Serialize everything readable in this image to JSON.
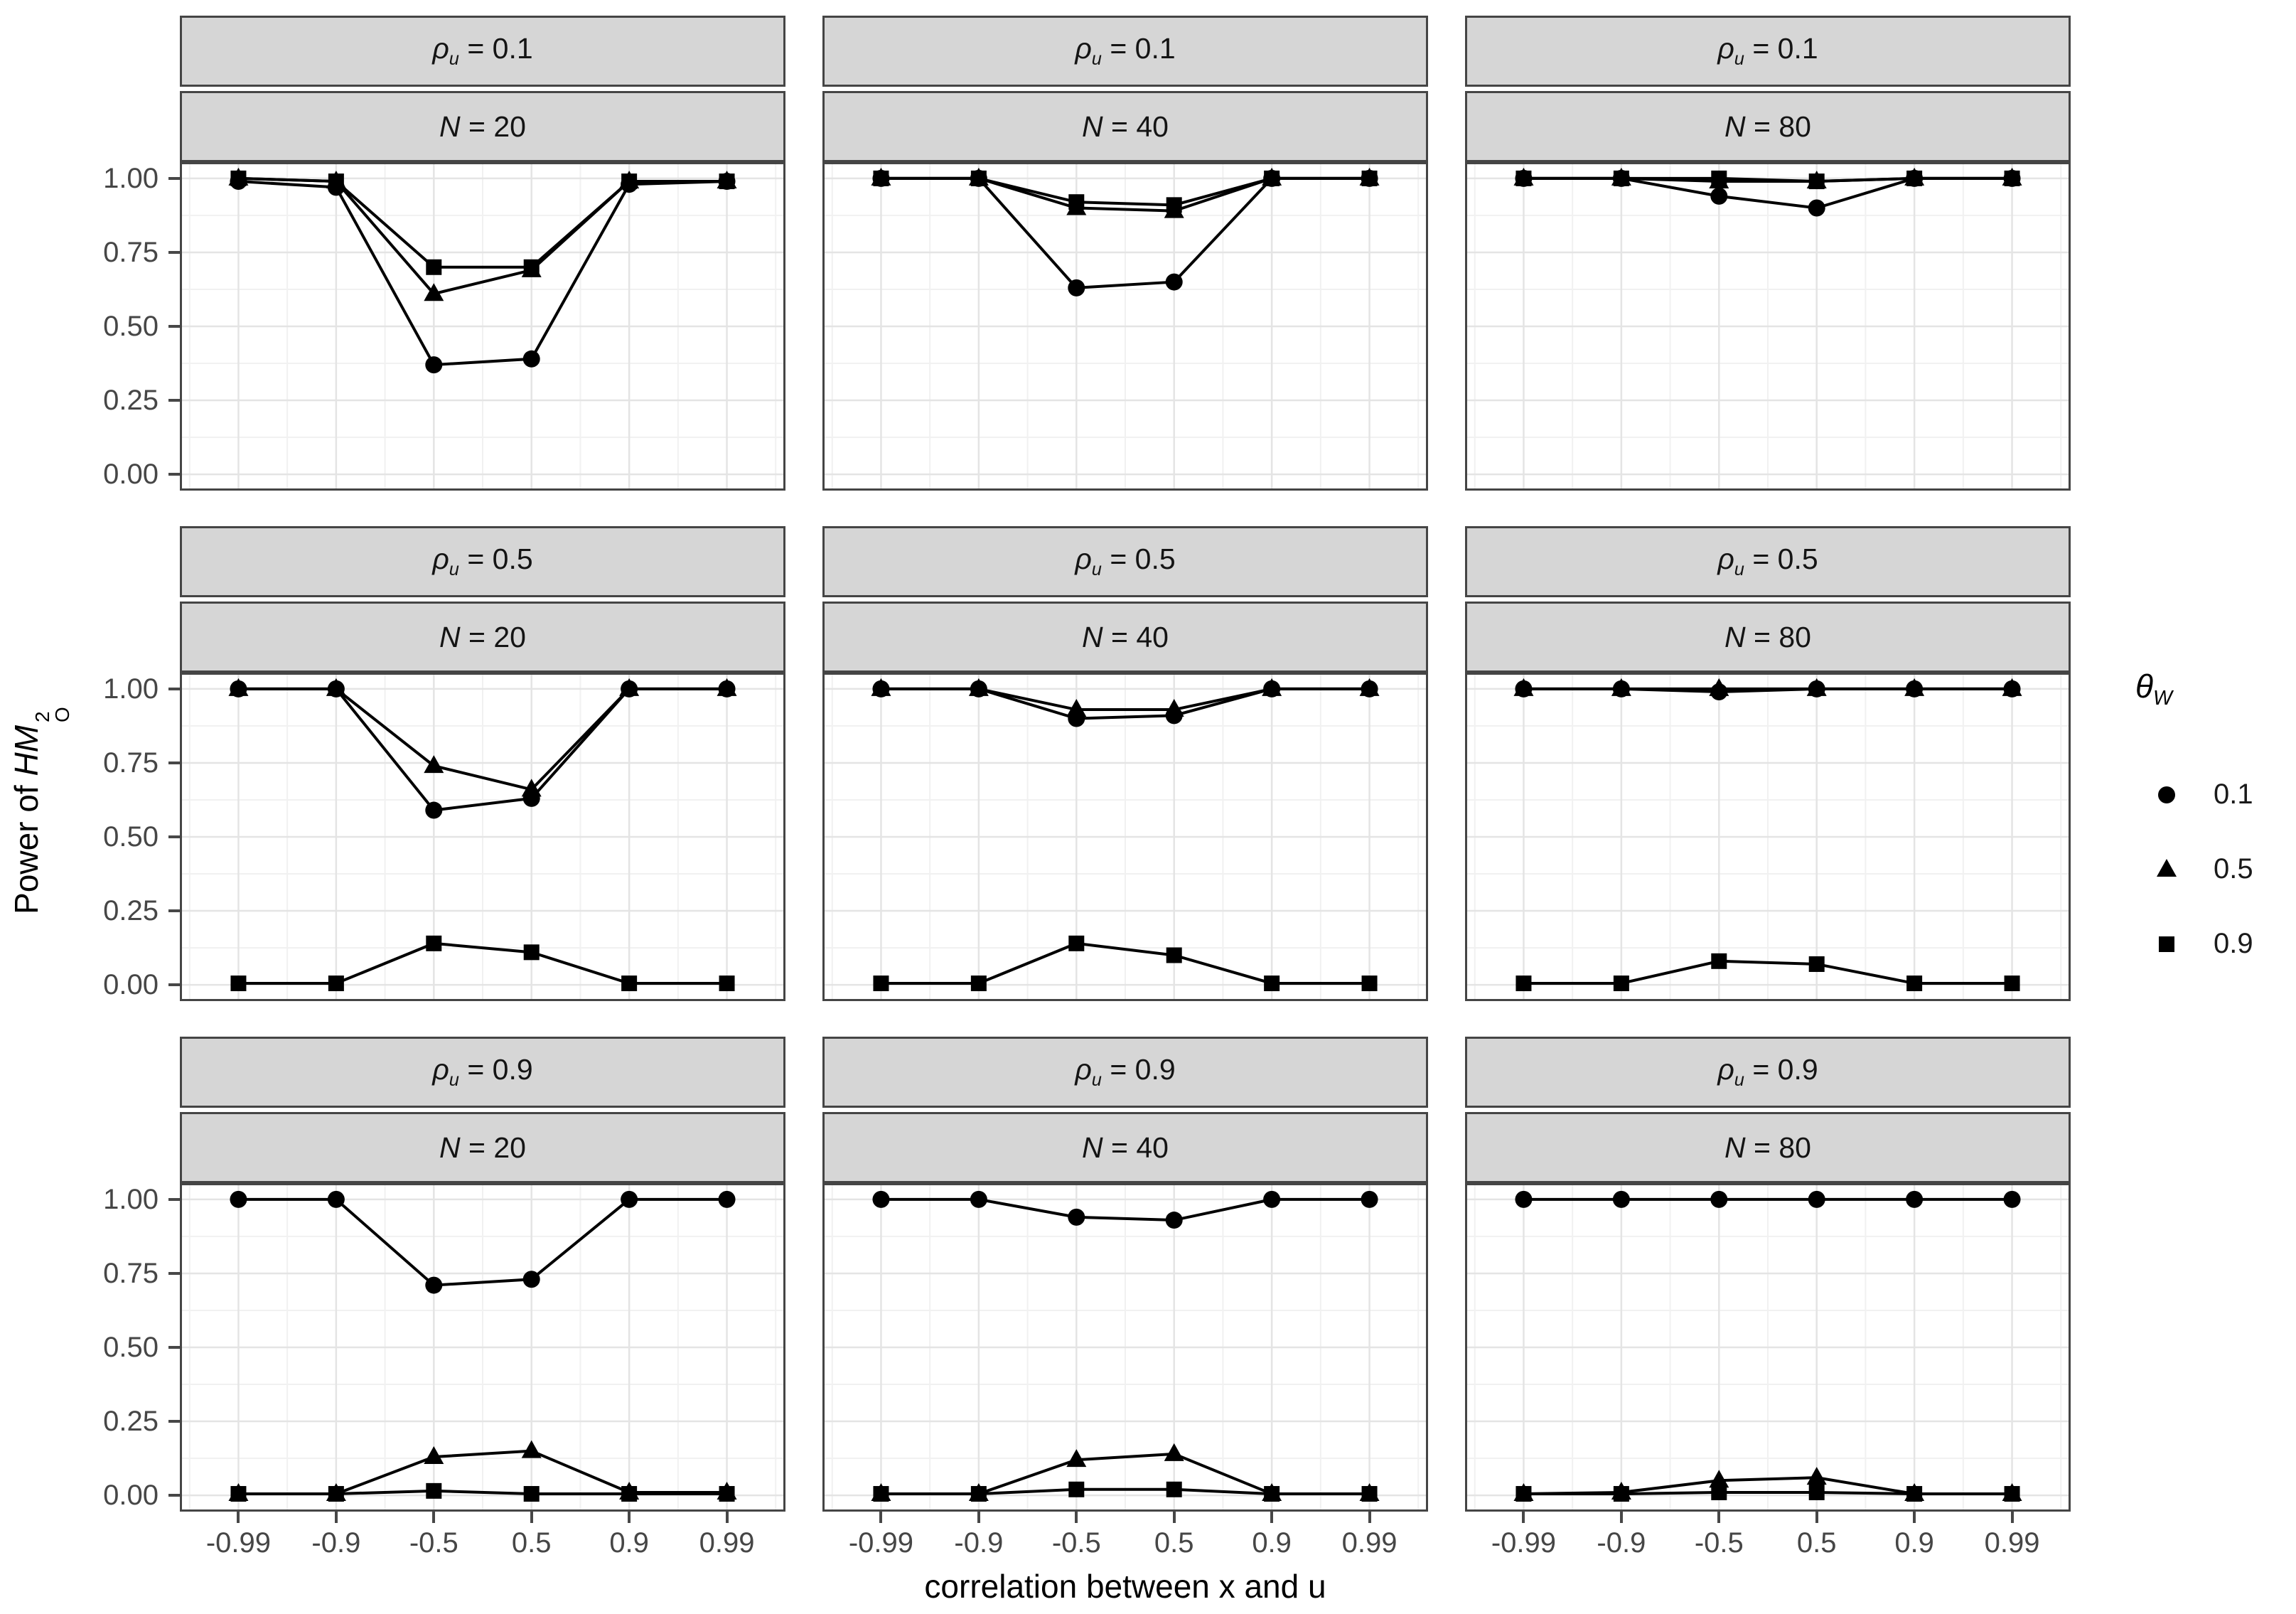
{
  "axes": {
    "x_title": "correlation between x and u",
    "y_title_prefix": "Power of ",
    "y_title_math": "HM",
    "y_title_sup": "2",
    "y_title_sub": "O",
    "x_tick_labels": [
      "-0.99",
      "-0.9",
      "-0.5",
      "0.5",
      "0.9",
      "0.99"
    ],
    "y_tick_labels": [
      "1.00",
      "0.75",
      "0.50",
      "0.25",
      "0.00"
    ],
    "y_tick_values": [
      1.0,
      0.75,
      0.5,
      0.25,
      0.0
    ]
  },
  "facets": {
    "row_symbol": "ρ",
    "row_sub": "u",
    "col_symbol": "N",
    "equals": " = "
  },
  "legend": {
    "title_symbol": "θ",
    "title_sub": "W",
    "entries": [
      {
        "marker": "circle",
        "label": "0.1"
      },
      {
        "marker": "triangle",
        "label": "0.5"
      },
      {
        "marker": "square",
        "label": "0.9"
      }
    ]
  },
  "colors": {
    "series": "#000000",
    "strip_fill": "#d6d6d6",
    "panel_border": "#454545",
    "grid_major": "#e4e4e4",
    "grid_minor": "#f1f1f1",
    "tick_text": "#464646"
  },
  "chart_data": {
    "type": "line",
    "x_type": "discrete",
    "x": [
      -0.99,
      -0.9,
      -0.5,
      0.5,
      0.9,
      0.99
    ],
    "xlabel": "correlation between x and u",
    "ylabel": "Power of HM_O^2",
    "ylim": [
      0,
      1
    ],
    "y_ticks": [
      0,
      0.25,
      0.5,
      0.75,
      1.0
    ],
    "grid": true,
    "legend_title": "theta_W",
    "legend_position": "right",
    "facet_rows_variable": "rho_u",
    "facet_cols_variable": "N",
    "panels": [
      {
        "rho": "0.1",
        "N": "20",
        "series": [
          {
            "theta": "0.1",
            "marker": "circle",
            "values": [
              0.99,
              0.97,
              0.37,
              0.39,
              0.98,
              0.99
            ]
          },
          {
            "theta": "0.5",
            "marker": "triangle",
            "values": [
              1.0,
              0.99,
              0.61,
              0.69,
              0.99,
              0.99
            ]
          },
          {
            "theta": "0.9",
            "marker": "square",
            "values": [
              1.0,
              0.99,
              0.7,
              0.7,
              0.99,
              0.99
            ]
          }
        ]
      },
      {
        "rho": "0.1",
        "N": "40",
        "series": [
          {
            "theta": "0.1",
            "marker": "circle",
            "values": [
              1.0,
              1.0,
              0.63,
              0.65,
              1.0,
              1.0
            ]
          },
          {
            "theta": "0.5",
            "marker": "triangle",
            "values": [
              1.0,
              1.0,
              0.9,
              0.89,
              1.0,
              1.0
            ]
          },
          {
            "theta": "0.9",
            "marker": "square",
            "values": [
              1.0,
              1.0,
              0.92,
              0.91,
              1.0,
              1.0
            ]
          }
        ]
      },
      {
        "rho": "0.1",
        "N": "80",
        "series": [
          {
            "theta": "0.1",
            "marker": "circle",
            "values": [
              1.0,
              1.0,
              0.94,
              0.9,
              1.0,
              1.0
            ]
          },
          {
            "theta": "0.5",
            "marker": "triangle",
            "values": [
              1.0,
              1.0,
              0.99,
              0.99,
              1.0,
              1.0
            ]
          },
          {
            "theta": "0.9",
            "marker": "square",
            "values": [
              1.0,
              1.0,
              1.0,
              0.99,
              1.0,
              1.0
            ]
          }
        ]
      },
      {
        "rho": "0.5",
        "N": "20",
        "series": [
          {
            "theta": "0.1",
            "marker": "circle",
            "values": [
              1.0,
              1.0,
              0.59,
              0.63,
              1.0,
              1.0
            ]
          },
          {
            "theta": "0.5",
            "marker": "triangle",
            "values": [
              1.0,
              1.0,
              0.74,
              0.66,
              1.0,
              1.0
            ]
          },
          {
            "theta": "0.9",
            "marker": "square",
            "values": [
              0.005,
              0.005,
              0.14,
              0.11,
              0.005,
              0.005
            ]
          }
        ]
      },
      {
        "rho": "0.5",
        "N": "40",
        "series": [
          {
            "theta": "0.1",
            "marker": "circle",
            "values": [
              1.0,
              1.0,
              0.9,
              0.91,
              1.0,
              1.0
            ]
          },
          {
            "theta": "0.5",
            "marker": "triangle",
            "values": [
              1.0,
              1.0,
              0.93,
              0.93,
              1.0,
              1.0
            ]
          },
          {
            "theta": "0.9",
            "marker": "square",
            "values": [
              0.005,
              0.005,
              0.14,
              0.1,
              0.005,
              0.005
            ]
          }
        ]
      },
      {
        "rho": "0.5",
        "N": "80",
        "series": [
          {
            "theta": "0.1",
            "marker": "circle",
            "values": [
              1.0,
              1.0,
              0.99,
              1.0,
              1.0,
              1.0
            ]
          },
          {
            "theta": "0.5",
            "marker": "triangle",
            "values": [
              1.0,
              1.0,
              1.0,
              1.0,
              1.0,
              1.0
            ]
          },
          {
            "theta": "0.9",
            "marker": "square",
            "values": [
              0.005,
              0.005,
              0.08,
              0.07,
              0.005,
              0.005
            ]
          }
        ]
      },
      {
        "rho": "0.9",
        "N": "20",
        "series": [
          {
            "theta": "0.1",
            "marker": "circle",
            "values": [
              1.0,
              1.0,
              0.71,
              0.73,
              1.0,
              1.0
            ]
          },
          {
            "theta": "0.5",
            "marker": "triangle",
            "values": [
              0.005,
              0.005,
              0.13,
              0.15,
              0.01,
              0.01
            ]
          },
          {
            "theta": "0.9",
            "marker": "square",
            "values": [
              0.005,
              0.005,
              0.015,
              0.005,
              0.005,
              0.005
            ]
          }
        ]
      },
      {
        "rho": "0.9",
        "N": "40",
        "series": [
          {
            "theta": "0.1",
            "marker": "circle",
            "values": [
              1.0,
              1.0,
              0.94,
              0.93,
              1.0,
              1.0
            ]
          },
          {
            "theta": "0.5",
            "marker": "triangle",
            "values": [
              0.005,
              0.005,
              0.12,
              0.14,
              0.005,
              0.005
            ]
          },
          {
            "theta": "0.9",
            "marker": "square",
            "values": [
              0.005,
              0.005,
              0.02,
              0.02,
              0.005,
              0.005
            ]
          }
        ]
      },
      {
        "rho": "0.9",
        "N": "80",
        "series": [
          {
            "theta": "0.1",
            "marker": "circle",
            "values": [
              1.0,
              1.0,
              1.0,
              1.0,
              1.0,
              1.0
            ]
          },
          {
            "theta": "0.5",
            "marker": "triangle",
            "values": [
              0.005,
              0.01,
              0.05,
              0.06,
              0.005,
              0.005
            ]
          },
          {
            "theta": "0.9",
            "marker": "square",
            "values": [
              0.005,
              0.005,
              0.01,
              0.01,
              0.005,
              0.005
            ]
          }
        ]
      }
    ]
  }
}
